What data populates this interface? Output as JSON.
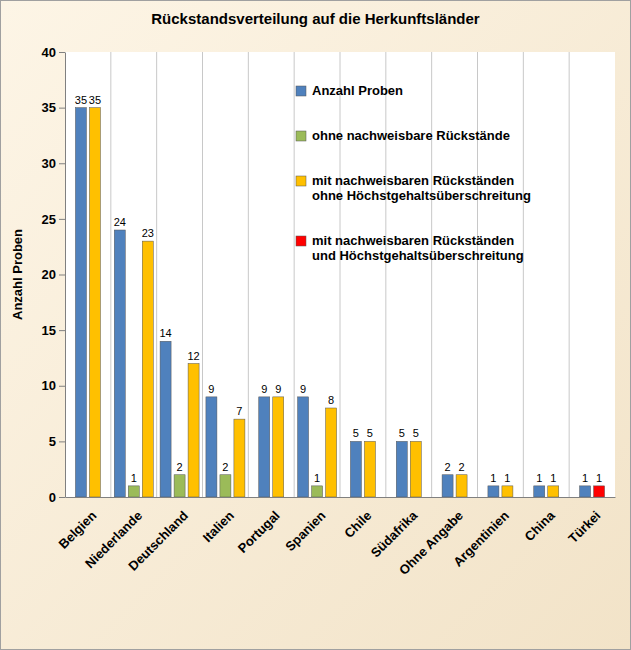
{
  "chart_data": {
    "type": "bar",
    "title": "Rückstandsverteilung auf die Herkunftsländer",
    "ylabel": "Anzahl Proben",
    "categories": [
      "Belgien",
      "Niederlande",
      "Deutschland",
      "Italien",
      "Portugal",
      "Spanien",
      "Chile",
      "Südafrika",
      "Ohne Angabe",
      "Argentinien",
      "China",
      "Türkei"
    ],
    "series": [
      {
        "name": "Anzahl Proben",
        "color": "#4f81bd",
        "values": [
          35,
          24,
          14,
          9,
          9,
          9,
          5,
          5,
          2,
          1,
          1,
          1
        ]
      },
      {
        "name": "ohne nachweisbare Rückstände",
        "color": "#9bbb59",
        "values": [
          null,
          1,
          2,
          2,
          null,
          1,
          null,
          null,
          null,
          null,
          null,
          null
        ]
      },
      {
        "name": "mit nachweisbaren Rückständen\nohne Höchstgehaltsüberschreitung",
        "color": "#ffc000",
        "values": [
          35,
          23,
          12,
          7,
          9,
          8,
          5,
          5,
          2,
          1,
          1,
          null
        ]
      },
      {
        "name": "mit nachweisbaren Rückständen\nund Höchstgehaltsüberschreitung",
        "color": "#ff0000",
        "values": [
          null,
          null,
          null,
          null,
          null,
          null,
          null,
          null,
          null,
          null,
          null,
          1
        ]
      }
    ],
    "ylim": [
      0,
      40
    ],
    "yticks": [
      0,
      5,
      10,
      15,
      20,
      25,
      30,
      35,
      40
    ],
    "grid": true,
    "legend": "upper right",
    "data_labels": true
  }
}
